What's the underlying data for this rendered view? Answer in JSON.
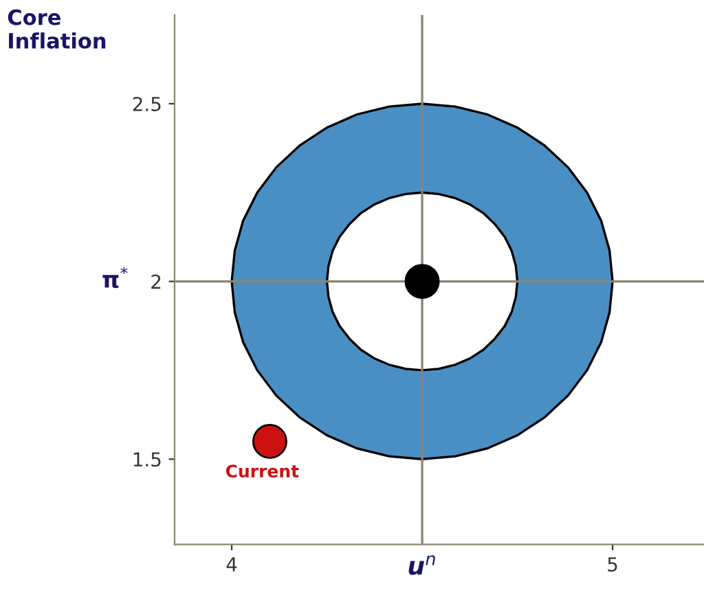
{
  "chart_data": {
    "type": "scatter",
    "ylabel": "Core\nInflation",
    "xlim": [
      3.85,
      5.24
    ],
    "ylim": [
      1.26,
      2.75
    ],
    "xticks": [
      4,
      5
    ],
    "yticks": [
      1.5,
      2,
      2.5
    ],
    "series": [
      {
        "type": "area",
        "color": "#4a8fc4",
        "x": [
          4.0,
          4.008,
          4.03,
          4.067,
          4.117,
          4.179,
          4.25,
          4.329,
          4.413,
          4.5,
          4.587,
          4.671,
          4.75,
          4.821,
          4.883,
          4.933,
          4.97,
          4.992,
          5.0,
          4.992,
          4.97,
          4.933,
          4.883,
          4.821,
          4.75,
          4.671,
          4.587,
          4.5,
          4.413,
          4.329,
          4.25,
          4.179,
          4.117,
          4.067,
          4.03,
          4.008
        ],
        "values": [
          2,
          2.087,
          2.171,
          2.25,
          2.321,
          2.383,
          2.433,
          2.47,
          2.492,
          2.5,
          2.492,
          2.47,
          2.433,
          2.383,
          2.321,
          2.25,
          2.171,
          2.087,
          2,
          1.913,
          1.829,
          1.75,
          1.679,
          1.617,
          1.567,
          1.53,
          1.508,
          1.5,
          1.508,
          1.53,
          1.567,
          1.617,
          1.679,
          1.75,
          1.829,
          1.913
        ]
      },
      {
        "type": "area",
        "color": "#ffffff",
        "x": [
          4.25,
          4.254,
          4.265,
          4.283,
          4.309,
          4.339,
          4.375,
          4.415,
          4.457,
          4.5,
          4.543,
          4.585,
          4.625,
          4.661,
          4.691,
          4.717,
          4.735,
          4.746,
          4.75,
          4.746,
          4.735,
          4.717,
          4.691,
          4.661,
          4.625,
          4.585,
          4.543,
          4.5,
          4.457,
          4.415,
          4.375,
          4.339,
          4.309,
          4.283,
          4.265,
          4.254
        ],
        "values": [
          2,
          2.043,
          2.086,
          2.125,
          2.161,
          2.192,
          2.217,
          2.235,
          2.246,
          2.25,
          2.246,
          2.235,
          2.217,
          2.192,
          2.161,
          2.125,
          2.086,
          2.043,
          2,
          1.957,
          1.914,
          1.875,
          1.839,
          1.808,
          1.783,
          1.765,
          1.754,
          1.75,
          1.754,
          1.765,
          1.783,
          1.808,
          1.839,
          1.875,
          1.914,
          1.957
        ]
      },
      {
        "color": "#000000",
        "x": [
          4.5
        ],
        "values": [
          2
        ],
        "marker": "circle"
      },
      {
        "color": "#cc1111",
        "x": [
          4.1
        ],
        "values": [
          1.55
        ],
        "marker": "circle"
      }
    ],
    "ref_lines": [
      {
        "axis": "x",
        "value": 4.5,
        "label": "u$^{n}$",
        "color": "#8c8474"
      },
      {
        "axis": "y",
        "value": 2,
        "label": "π$^{*}$",
        "color": "#8c8474"
      }
    ],
    "annotations": [
      {
        "text": "Current",
        "x": 4.1,
        "y": 1.55
      }
    ],
    "grid": false,
    "legend": false
  }
}
